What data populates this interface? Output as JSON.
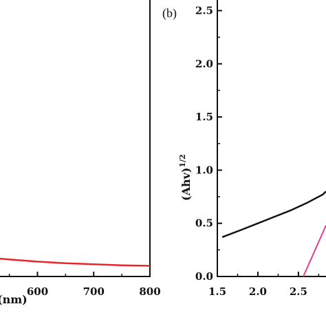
{
  "chart_data": [
    {
      "panel": "a",
      "type": "line",
      "xlabel": "(nm)",
      "x_ticks": [
        600,
        700,
        800
      ],
      "xlim": [
        515,
        800
      ],
      "ylim": [
        0,
        2.6
      ],
      "series": [
        {
          "color": "#e8262b",
          "x": [
            515,
            550,
            600,
            650,
            700,
            750,
            800
          ],
          "y": [
            0.175,
            0.16,
            0.14,
            0.125,
            0.115,
            0.105,
            0.1
          ]
        }
      ]
    },
    {
      "panel": "b",
      "type": "line",
      "panel_label": "(b)",
      "ylabel": "(Ahv)",
      "ylabel_superscript": "1/2",
      "y_ticks": [
        "0.0",
        "0.5",
        "1.0",
        "1.5",
        "2.0",
        "2.5"
      ],
      "x_ticks": [
        "1.5",
        "2.0",
        "2.5"
      ],
      "xlim": [
        1.5,
        2.84
      ],
      "ylim": [
        0,
        2.6
      ],
      "series": [
        {
          "color": "#111111",
          "x": [
            1.56,
            1.8,
            2.0,
            2.2,
            2.4,
            2.6,
            2.8,
            2.84
          ],
          "y": [
            0.37,
            0.44,
            0.5,
            0.56,
            0.62,
            0.69,
            0.77,
            0.8
          ]
        },
        {
          "color": "#e83d8f",
          "x": [
            2.56,
            2.84
          ],
          "y": [
            0.0,
            0.48
          ]
        }
      ]
    }
  ]
}
